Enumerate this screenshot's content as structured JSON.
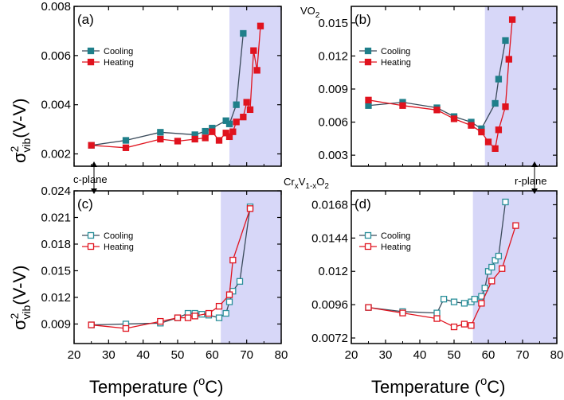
{
  "colors": {
    "cooling_filled": "#1f7f8a",
    "heating_filled": "#e0131e",
    "cooling_open": "#2a8f9a",
    "heating_open": "#e0131e",
    "cooling_line": "#3a4a5a",
    "heating_line": "#e0131e",
    "shade": "#c9c9f5"
  },
  "figure": {
    "x_label_main": "Temperature (",
    "x_label_sup": "o",
    "x_label_tail": "C)",
    "y_label_sigma": "σ",
    "y_label_sup": "2",
    "y_label_sub": "vib",
    "y_label_tail": "(V-V)",
    "vo2_base": "VO",
    "vo2_sub": "2",
    "cr_label": {
      "cr": "Cr",
      "x": "x",
      "v": "V",
      "sub": "1-x",
      "o": "O",
      "o_sub": "2"
    },
    "c_plane": "c-plane",
    "r_plane": "r-plane"
  },
  "chart_data": [
    {
      "id": "a",
      "panel_label": "(a)",
      "type": "scatter",
      "xlim": [
        20,
        80
      ],
      "ylim": [
        0.0015,
        0.008
      ],
      "xticks": [
        "20",
        "30",
        "40",
        "50",
        "60",
        "70",
        "80"
      ],
      "yticks": [
        0.002,
        0.004,
        0.006,
        0.008
      ],
      "ytick_labels": [
        "0.002",
        "0.004",
        "0.006",
        "0.008"
      ],
      "shade": [
        65,
        80
      ],
      "marker": "filled",
      "series": [
        {
          "name": "Cooling",
          "x": [
            25,
            35,
            45,
            55,
            58,
            60,
            64,
            65,
            67,
            69
          ],
          "y": [
            0.00235,
            0.00255,
            0.00288,
            0.00278,
            0.00292,
            0.00305,
            0.00335,
            0.00322,
            0.004,
            0.0069
          ]
        },
        {
          "name": "Heating",
          "x": [
            25,
            35,
            45,
            50,
            55,
            58,
            60,
            62,
            64,
            65,
            66,
            67,
            69,
            70,
            71,
            72,
            73,
            74
          ],
          "y": [
            0.00235,
            0.00225,
            0.0026,
            0.00252,
            0.0026,
            0.00265,
            0.0029,
            0.00255,
            0.00285,
            0.0027,
            0.0029,
            0.0033,
            0.0035,
            0.0041,
            0.0038,
            0.0062,
            0.0054,
            0.0072
          ]
        }
      ]
    },
    {
      "id": "b",
      "panel_label": "(b)",
      "type": "scatter",
      "xlim": [
        20,
        80
      ],
      "ylim": [
        0.002,
        0.0165
      ],
      "xticks": [
        "20",
        "30",
        "40",
        "50",
        "60",
        "70",
        "80"
      ],
      "yticks": [
        0.003,
        0.006,
        0.009,
        0.012,
        0.015
      ],
      "ytick_labels": [
        "0.003",
        "0.006",
        "0.009",
        "0.012",
        "0.015"
      ],
      "shade": [
        59,
        80
      ],
      "marker": "filled",
      "series": [
        {
          "name": "Cooling",
          "x": [
            25,
            35,
            45,
            50,
            55,
            58,
            62,
            63,
            65
          ],
          "y": [
            0.0075,
            0.0078,
            0.0073,
            0.0065,
            0.006,
            0.0054,
            0.0077,
            0.0099,
            0.0134
          ]
        },
        {
          "name": "Heating",
          "x": [
            25,
            35,
            45,
            50,
            55,
            58,
            60,
            62,
            63,
            65,
            66,
            67
          ],
          "y": [
            0.008,
            0.0075,
            0.0071,
            0.0063,
            0.0057,
            0.0051,
            0.0042,
            0.0036,
            0.0053,
            0.0074,
            0.0117,
            0.0153
          ]
        }
      ]
    },
    {
      "id": "c",
      "panel_label": "(c)",
      "type": "scatter",
      "xlim": [
        20,
        80
      ],
      "ylim": [
        0.0068,
        0.024
      ],
      "xticks": [
        "20",
        "30",
        "40",
        "50",
        "60",
        "70",
        "80"
      ],
      "yticks": [
        0.009,
        0.012,
        0.015,
        0.018,
        0.021,
        0.024
      ],
      "ytick_labels": [
        "0.009",
        "0.012",
        "0.015",
        "0.018",
        "0.021",
        "0.024"
      ],
      "shade": [
        62.5,
        80
      ],
      "marker": "open",
      "series": [
        {
          "name": "Cooling",
          "x": [
            25,
            35,
            45,
            50,
            53,
            55,
            57,
            59,
            62,
            64,
            65,
            66,
            68,
            71
          ],
          "y": [
            0.0089,
            0.009,
            0.0091,
            0.0097,
            0.0102,
            0.0102,
            0.0101,
            0.01,
            0.0097,
            0.0102,
            0.0115,
            0.0127,
            0.0138,
            0.0222
          ]
        },
        {
          "name": "Heating",
          "x": [
            25,
            35,
            45,
            50,
            53,
            55,
            59,
            62,
            65,
            66,
            71
          ],
          "y": [
            0.0089,
            0.0085,
            0.0093,
            0.0097,
            0.0097,
            0.0099,
            0.0102,
            0.011,
            0.0123,
            0.0162,
            0.022
          ]
        }
      ]
    },
    {
      "id": "d",
      "panel_label": "(d)",
      "type": "scatter",
      "xlim": [
        20,
        80
      ],
      "ylim": [
        0.0068,
        0.0178
      ],
      "xticks": [
        "20",
        "30",
        "40",
        "50",
        "60",
        "70",
        "80"
      ],
      "yticks": [
        0.0072,
        0.0096,
        0.012,
        0.0144,
        0.0168
      ],
      "ytick_labels": [
        "0.0072",
        "0.0096",
        "0.012",
        "0.0144",
        "0.0168"
      ],
      "shade": [
        55.5,
        80
      ],
      "marker": "open",
      "series": [
        {
          "name": "Cooling",
          "x": [
            25,
            35,
            45,
            47,
            50,
            53,
            55,
            56,
            58,
            59,
            60,
            61,
            62,
            63,
            65
          ],
          "y": [
            0.0094,
            0.0091,
            0.009,
            0.01,
            0.0098,
            0.0097,
            0.0098,
            0.01,
            0.0102,
            0.0108,
            0.012,
            0.0123,
            0.0128,
            0.0131,
            0.017
          ]
        },
        {
          "name": "Heating",
          "x": [
            25,
            35,
            45,
            50,
            53,
            55,
            58,
            61,
            64,
            68
          ],
          "y": [
            0.0094,
            0.009,
            0.0086,
            0.008,
            0.0082,
            0.0081,
            0.0097,
            0.0113,
            0.0122,
            0.0153
          ]
        }
      ]
    }
  ]
}
